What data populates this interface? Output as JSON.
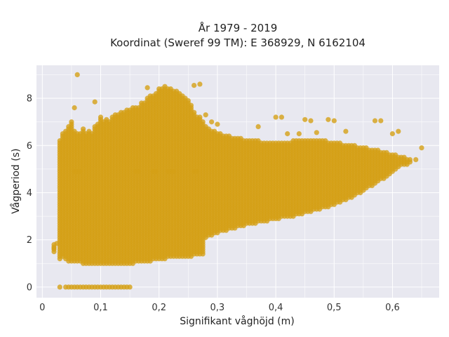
{
  "chart_data": {
    "type": "scatter",
    "title": "År 1979 - 2019",
    "subtitle": "Koordinat (Sweref 99 TM): E 368929, N 6162104",
    "xlabel": "Signifikant våghöjd (m)",
    "ylabel": "Vågperiod (s)",
    "xlim": [
      -0.01,
      0.68
    ],
    "ylim": [
      -0.45,
      9.4
    ],
    "xticks": [
      0,
      0.1,
      0.2,
      0.3,
      0.4,
      0.5,
      0.6
    ],
    "xtick_labels": [
      "0",
      "0,1",
      "0,2",
      "0,3",
      "0,4",
      "0,5",
      "0,6"
    ],
    "yticks": [
      0,
      2,
      4,
      6,
      8
    ],
    "ytick_labels": [
      "0",
      "2",
      "4",
      "6",
      "8"
    ],
    "grid": true,
    "legend": "none",
    "colors": {
      "marker": "#D4A017",
      "plot_bg": "#E8E8F0",
      "grid": "#ffffff"
    },
    "series": [
      {
        "columns": [
          [
            0.02,
            1.5,
            1.85
          ],
          [
            0.03,
            1.2,
            6.2
          ],
          [
            0.035,
            1.3,
            6.5
          ],
          [
            0.04,
            1.2,
            6.6
          ],
          [
            0.045,
            1.1,
            6.8
          ],
          [
            0.05,
            1.1,
            7.0
          ],
          [
            0.055,
            1.05,
            6.7
          ],
          [
            0.06,
            1.05,
            6.6
          ],
          [
            0.065,
            1.05,
            6.6
          ],
          [
            0.07,
            1.0,
            6.7
          ],
          [
            0.075,
            1.0,
            6.5
          ],
          [
            0.08,
            1.0,
            6.6
          ],
          [
            0.085,
            1.0,
            6.5
          ],
          [
            0.09,
            1.0,
            6.8
          ],
          [
            0.095,
            1.0,
            6.9
          ],
          [
            0.1,
            1.0,
            7.2
          ],
          [
            0.105,
            1.0,
            7.0
          ],
          [
            0.11,
            1.0,
            7.1
          ],
          [
            0.115,
            1.0,
            7.0
          ],
          [
            0.12,
            1.0,
            7.2
          ],
          [
            0.125,
            1.0,
            7.3
          ],
          [
            0.13,
            1.0,
            7.3
          ],
          [
            0.135,
            1.0,
            7.4
          ],
          [
            0.14,
            1.0,
            7.4
          ],
          [
            0.145,
            1.0,
            7.5
          ],
          [
            0.15,
            1.0,
            7.5
          ],
          [
            0.155,
            1.0,
            7.6
          ],
          [
            0.16,
            1.05,
            7.7
          ],
          [
            0.165,
            1.05,
            7.7
          ],
          [
            0.17,
            1.1,
            7.8
          ],
          [
            0.175,
            1.1,
            7.8
          ],
          [
            0.18,
            1.1,
            8.0
          ],
          [
            0.185,
            1.1,
            8.1
          ],
          [
            0.19,
            1.15,
            8.2
          ],
          [
            0.195,
            1.15,
            8.3
          ],
          [
            0.2,
            1.2,
            8.4
          ],
          [
            0.205,
            1.2,
            8.45
          ],
          [
            0.21,
            1.2,
            8.5
          ],
          [
            0.215,
            1.25,
            8.5
          ],
          [
            0.22,
            1.25,
            8.5
          ],
          [
            0.225,
            1.25,
            8.4
          ],
          [
            0.23,
            1.3,
            8.3
          ],
          [
            0.235,
            1.3,
            8.2
          ],
          [
            0.24,
            1.3,
            8.1
          ],
          [
            0.245,
            1.3,
            8.0
          ],
          [
            0.25,
            1.3,
            7.9
          ],
          [
            0.255,
            1.3,
            7.7
          ],
          [
            0.26,
            1.35,
            7.5
          ],
          [
            0.265,
            1.35,
            7.3
          ],
          [
            0.27,
            1.4,
            7.2
          ],
          [
            0.275,
            1.4,
            7.0
          ],
          [
            0.28,
            2.1,
            6.8
          ],
          [
            0.285,
            2.2,
            6.7
          ],
          [
            0.29,
            2.2,
            6.6
          ],
          [
            0.295,
            2.3,
            6.6
          ],
          [
            0.3,
            2.3,
            6.5
          ],
          [
            0.305,
            2.4,
            6.5
          ],
          [
            0.31,
            2.4,
            6.4
          ],
          [
            0.315,
            2.4,
            6.4
          ],
          [
            0.32,
            2.5,
            6.4
          ],
          [
            0.325,
            2.5,
            6.3
          ],
          [
            0.33,
            2.5,
            6.3
          ],
          [
            0.335,
            2.6,
            6.3
          ],
          [
            0.34,
            2.6,
            6.3
          ],
          [
            0.345,
            2.6,
            6.2
          ],
          [
            0.35,
            2.7,
            6.2
          ],
          [
            0.355,
            2.7,
            6.2
          ],
          [
            0.36,
            2.7,
            6.2
          ],
          [
            0.365,
            2.7,
            6.2
          ],
          [
            0.37,
            2.8,
            6.2
          ],
          [
            0.375,
            2.8,
            6.1
          ],
          [
            0.38,
            2.8,
            6.1
          ],
          [
            0.385,
            2.8,
            6.1
          ],
          [
            0.39,
            2.9,
            6.1
          ],
          [
            0.395,
            2.9,
            6.1
          ],
          [
            0.4,
            2.9,
            6.1
          ],
          [
            0.405,
            2.9,
            6.1
          ],
          [
            0.41,
            3.0,
            6.1
          ],
          [
            0.415,
            3.0,
            6.1
          ],
          [
            0.42,
            3.0,
            6.1
          ],
          [
            0.425,
            3.0,
            6.1
          ],
          [
            0.43,
            3.0,
            6.2
          ],
          [
            0.435,
            3.1,
            6.2
          ],
          [
            0.44,
            3.1,
            6.2
          ],
          [
            0.445,
            3.1,
            6.2
          ],
          [
            0.45,
            3.2,
            6.2
          ],
          [
            0.455,
            3.2,
            6.2
          ],
          [
            0.46,
            3.2,
            6.2
          ],
          [
            0.465,
            3.3,
            6.2
          ],
          [
            0.47,
            3.3,
            6.2
          ],
          [
            0.475,
            3.3,
            6.2
          ],
          [
            0.48,
            3.4,
            6.2
          ],
          [
            0.485,
            3.4,
            6.2
          ],
          [
            0.49,
            3.4,
            6.1
          ],
          [
            0.495,
            3.5,
            6.1
          ],
          [
            0.5,
            3.5,
            6.1
          ],
          [
            0.505,
            3.6,
            6.1
          ],
          [
            0.51,
            3.6,
            6.1
          ],
          [
            0.515,
            3.7,
            6.0
          ],
          [
            0.52,
            3.7,
            6.0
          ],
          [
            0.525,
            3.8,
            6.0
          ],
          [
            0.53,
            3.8,
            6.0
          ],
          [
            0.535,
            3.9,
            6.0
          ],
          [
            0.54,
            4.0,
            5.9
          ],
          [
            0.545,
            4.0,
            5.9
          ],
          [
            0.55,
            4.1,
            5.9
          ],
          [
            0.555,
            4.2,
            5.9
          ],
          [
            0.56,
            4.3,
            5.8
          ],
          [
            0.565,
            4.3,
            5.8
          ],
          [
            0.57,
            4.4,
            5.8
          ],
          [
            0.575,
            4.5,
            5.8
          ],
          [
            0.58,
            4.6,
            5.7
          ],
          [
            0.585,
            4.6,
            5.7
          ],
          [
            0.59,
            4.7,
            5.7
          ],
          [
            0.595,
            4.8,
            5.6
          ],
          [
            0.6,
            4.9,
            5.6
          ],
          [
            0.605,
            5.0,
            5.6
          ],
          [
            0.61,
            5.1,
            5.5
          ],
          [
            0.615,
            5.2,
            5.5
          ],
          [
            0.62,
            5.2,
            5.5
          ],
          [
            0.625,
            5.2,
            5.4
          ],
          [
            0.63,
            5.3,
            5.4
          ],
          [
            0.64,
            5.4,
            5.4
          ],
          [
            0.65,
            5.9,
            5.95
          ]
        ],
        "points": [
          [
            0.03,
            0
          ],
          [
            0.04,
            0
          ],
          [
            0.045,
            0
          ],
          [
            0.05,
            0
          ],
          [
            0.055,
            0
          ],
          [
            0.06,
            0
          ],
          [
            0.065,
            0
          ],
          [
            0.07,
            0
          ],
          [
            0.075,
            0
          ],
          [
            0.08,
            0
          ],
          [
            0.085,
            0
          ],
          [
            0.09,
            0
          ],
          [
            0.095,
            0
          ],
          [
            0.1,
            0
          ],
          [
            0.105,
            0
          ],
          [
            0.11,
            0
          ],
          [
            0.115,
            0
          ],
          [
            0.12,
            0
          ],
          [
            0.125,
            0
          ],
          [
            0.13,
            0
          ],
          [
            0.135,
            0
          ],
          [
            0.14,
            0
          ],
          [
            0.145,
            0
          ],
          [
            0.15,
            0
          ],
          [
            0.06,
            9.0
          ],
          [
            0.09,
            7.85
          ],
          [
            0.055,
            7.6
          ],
          [
            0.18,
            8.45
          ],
          [
            0.27,
            8.6
          ],
          [
            0.26,
            8.55
          ],
          [
            0.4,
            7.2
          ],
          [
            0.41,
            7.2
          ],
          [
            0.45,
            7.1
          ],
          [
            0.46,
            7.05
          ],
          [
            0.49,
            7.1
          ],
          [
            0.5,
            7.05
          ],
          [
            0.57,
            7.05
          ],
          [
            0.58,
            7.05
          ],
          [
            0.42,
            6.5
          ],
          [
            0.44,
            6.5
          ],
          [
            0.47,
            6.55
          ],
          [
            0.52,
            6.6
          ],
          [
            0.37,
            6.8
          ],
          [
            0.6,
            6.5
          ],
          [
            0.61,
            6.6
          ],
          [
            0.3,
            6.9
          ],
          [
            0.29,
            7.0
          ],
          [
            0.28,
            7.3
          ],
          [
            0.025,
            1.85
          ],
          [
            0.02,
            1.65
          ]
        ]
      }
    ]
  }
}
